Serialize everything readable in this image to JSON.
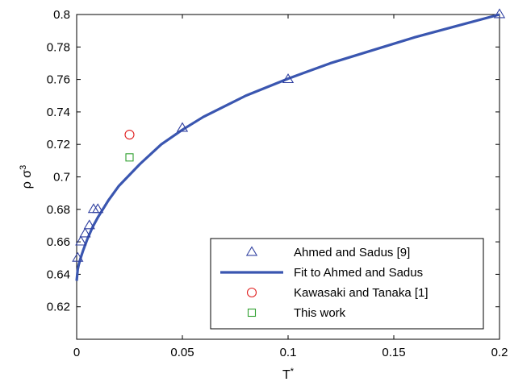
{
  "chart_data": {
    "type": "scatter",
    "xlabel_base": "T",
    "xlabel_sup": "*",
    "ylabel_base": "ρ σ",
    "ylabel_sup": "3",
    "xlim": [
      0,
      0.2
    ],
    "ylim": [
      0.6,
      0.8
    ],
    "xticks": [
      0,
      0.05,
      0.1,
      0.15,
      0.2
    ],
    "xtick_labels": [
      "0",
      "0.05",
      "0.1",
      "0.15",
      "0.2"
    ],
    "yticks": [
      0.62,
      0.64,
      0.66,
      0.68,
      0.7,
      0.72,
      0.74,
      0.76,
      0.78,
      0.8
    ],
    "ytick_labels": [
      "0.62",
      "0.64",
      "0.66",
      "0.68",
      "0.7",
      "0.72",
      "0.74",
      "0.76",
      "0.78",
      "0.8"
    ],
    "legend_position": "bottom-right",
    "series": [
      {
        "name": "Ahmed and Sadus [9]",
        "marker": "triangle",
        "color": "#3040a0",
        "x": [
          0.0005,
          0.002,
          0.004,
          0.006,
          0.008,
          0.01,
          0.05,
          0.1,
          0.2
        ],
        "y": [
          0.65,
          0.66,
          0.665,
          0.67,
          0.68,
          0.68,
          0.73,
          0.76,
          0.8
        ]
      },
      {
        "name": "Fit to Ahmed and Sadus",
        "marker": "line",
        "color": "#3a56b0",
        "x": [
          0,
          0.0005,
          0.001,
          0.002,
          0.003,
          0.005,
          0.0075,
          0.01,
          0.015,
          0.02,
          0.03,
          0.04,
          0.05,
          0.06,
          0.08,
          0.1,
          0.12,
          0.14,
          0.16,
          0.18,
          0.2
        ],
        "y": [
          0.636,
          0.643,
          0.646,
          0.6505,
          0.6545,
          0.6615,
          0.669,
          0.675,
          0.6855,
          0.6945,
          0.708,
          0.72,
          0.729,
          0.737,
          0.75,
          0.7605,
          0.77,
          0.778,
          0.786,
          0.793,
          0.8
        ]
      },
      {
        "name": "Kawasaki and Tanaka [1]",
        "marker": "circle",
        "color": "#e02020",
        "x": [
          0.025
        ],
        "y": [
          0.726
        ]
      },
      {
        "name": "This work",
        "marker": "square",
        "color": "#30a030",
        "x": [
          0.025
        ],
        "y": [
          0.712
        ]
      }
    ]
  }
}
